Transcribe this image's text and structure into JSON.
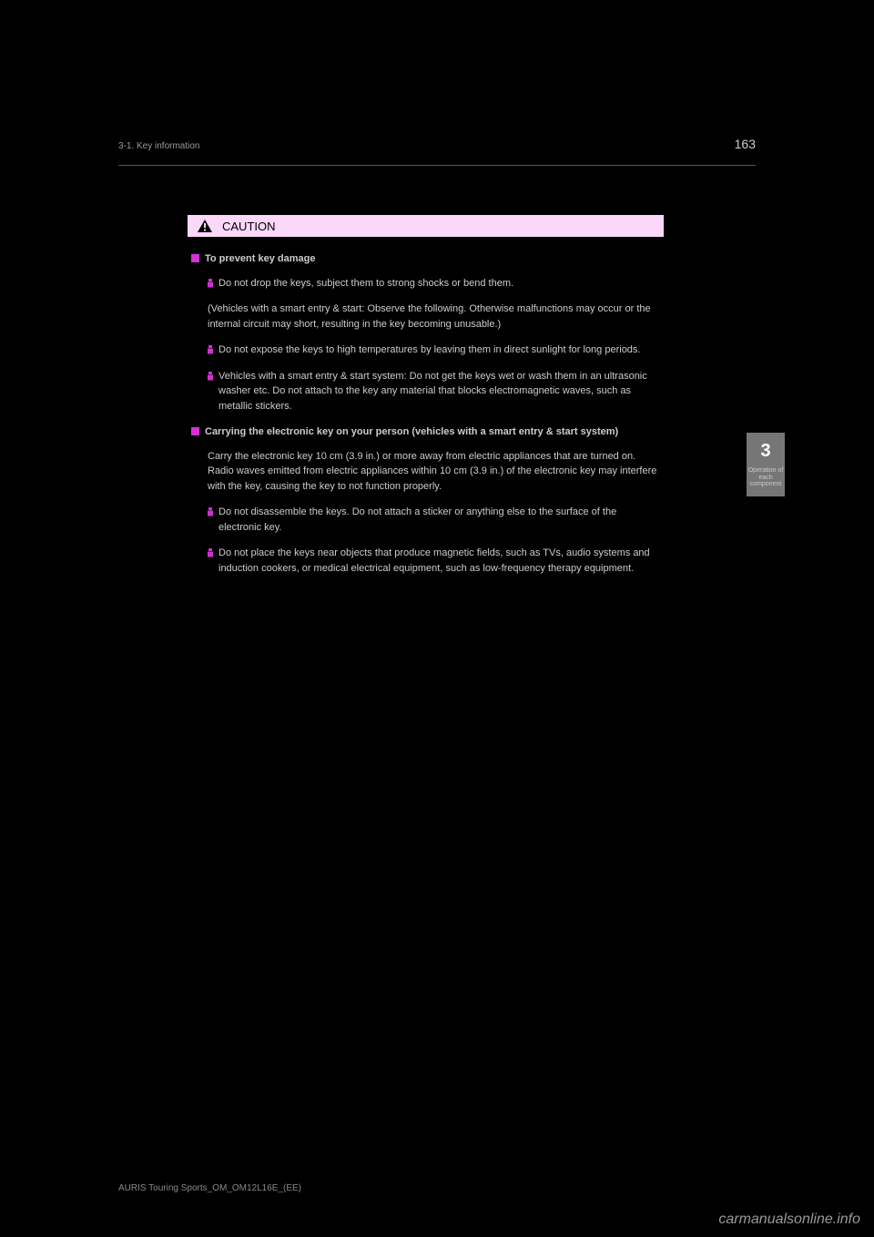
{
  "colors": {
    "background": "#000000",
    "body_text": "#cccccc",
    "muted_text": "#999999",
    "tab_bg": "#767676",
    "tab_text": "#ffffff",
    "caution_bg": "#fbd7f9",
    "caution_border": "#000000",
    "caution_text": "#000000",
    "section_bullet": "#d631d6",
    "item_bullet": "#cc33cc"
  },
  "header": {
    "page_number": "163",
    "section": "3-1. Key information"
  },
  "side_tab": {
    "number": "3",
    "text": "Operation of each component"
  },
  "caution": {
    "label": "CAUTION",
    "sections": [
      {
        "type": "section",
        "text": "To prevent key damage"
      },
      {
        "type": "bullet",
        "text": "Do not drop the keys, subject them to strong shocks or bend them."
      },
      {
        "type": "para",
        "text": "(Vehicles with a smart entry & start: Observe the following. Otherwise malfunctions may occur or the internal circuit may short, resulting in the key becoming unusable.)"
      },
      {
        "type": "bullet",
        "text": "Do not expose the keys to high temperatures by leaving them in direct sunlight for long periods."
      },
      {
        "type": "bullet",
        "text": "Vehicles with a smart entry & start system: Do not get the keys wet or wash them in an ultrasonic washer etc. Do not attach to the key any material that blocks electromagnetic waves, such as metallic stickers."
      },
      {
        "type": "section",
        "text": "Carrying the electronic key on your person (vehicles with a smart entry & start system)"
      },
      {
        "type": "para",
        "text": "Carry the electronic key 10 cm (3.9 in.) or more away from electric appliances that are turned on. Radio waves emitted from electric appliances within 10 cm (3.9 in.) of the electronic key may interfere with the key, causing the key to not function properly."
      },
      {
        "type": "bullet",
        "text": "Do not disassemble the keys. Do not attach a sticker or anything else to the surface of the electronic key."
      },
      {
        "type": "bullet",
        "text": "Do not place the keys near objects that produce magnetic fields, such as TVs, audio systems and induction cookers, or medical electrical equipment, such as low-frequency therapy equipment."
      }
    ]
  },
  "footer": {
    "text": "AURIS Touring Sports_OM_OM12L16E_(EE)"
  },
  "watermark": "carmanualsonline.info"
}
